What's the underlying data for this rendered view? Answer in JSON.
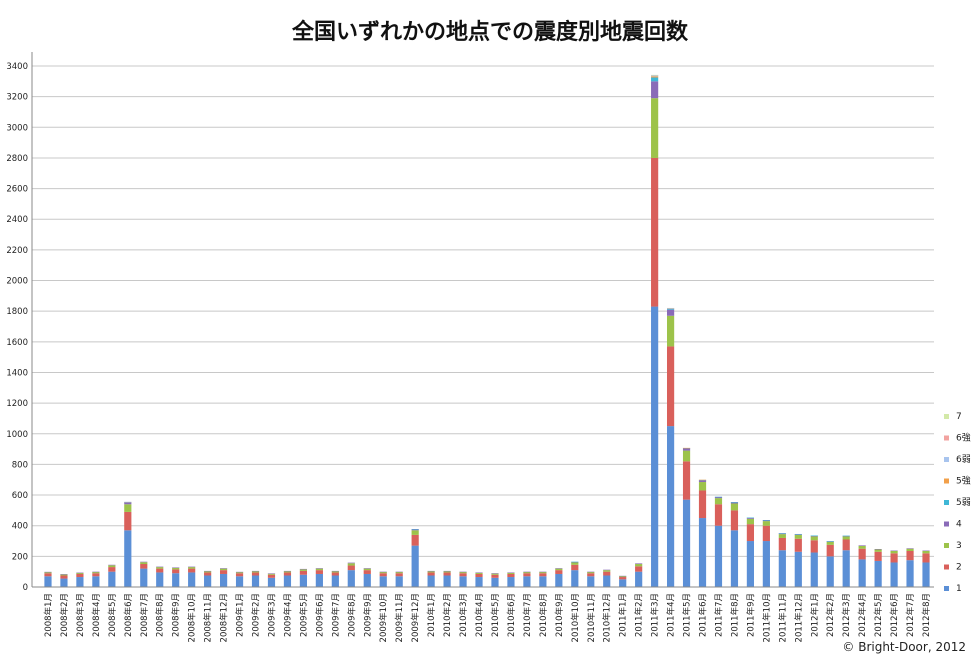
{
  "chart_data": {
    "type": "bar",
    "stacked": true,
    "title": "全国いずれかの地点での震度別地震回数",
    "xlabel": "",
    "ylabel": "",
    "ylim": [
      0,
      3400
    ],
    "yticks": [
      0,
      200,
      400,
      600,
      800,
      1000,
      1200,
      1400,
      1600,
      1800,
      2000,
      2200,
      2400,
      2600,
      2800,
      3000,
      3200,
      3400
    ],
    "grid": true,
    "legend_position": "right",
    "categories": [
      "2008年1月",
      "2008年2月",
      "2008年3月",
      "2008年4月",
      "2008年5月",
      "2008年6月",
      "2008年7月",
      "2008年8月",
      "2008年9月",
      "2008年10月",
      "2008年11月",
      "2008年12月",
      "2009年1月",
      "2009年2月",
      "2009年3月",
      "2009年4月",
      "2009年5月",
      "2009年6月",
      "2009年7月",
      "2009年8月",
      "2009年9月",
      "2009年10月",
      "2009年11月",
      "2009年12月",
      "2010年1月",
      "2010年2月",
      "2010年3月",
      "2010年4月",
      "2010年5月",
      "2010年6月",
      "2010年7月",
      "2010年8月",
      "2010年9月",
      "2010年10月",
      "2010年11月",
      "2010年12月",
      "2011年1月",
      "2011年2月",
      "2011年3月",
      "2011年4月",
      "2011年5月",
      "2011年6月",
      "2011年7月",
      "2011年8月",
      "2011年9月",
      "2011年10月",
      "2011年11月",
      "2011年12月",
      "2012年1月",
      "2012年2月",
      "2012年3月",
      "2012年4月",
      "2012年5月",
      "2012年6月",
      "2012年7月",
      "2012年8月"
    ],
    "series": [
      {
        "name": "1",
        "color": "#5b8fd6",
        "values": [
          70,
          55,
          65,
          70,
          100,
          370,
          120,
          95,
          90,
          95,
          75,
          85,
          70,
          75,
          60,
          75,
          80,
          85,
          75,
          110,
          85,
          70,
          70,
          270,
          75,
          75,
          70,
          65,
          60,
          65,
          70,
          70,
          85,
          110,
          70,
          75,
          50,
          100,
          1830,
          1050,
          570,
          450,
          400,
          370,
          300,
          300,
          240,
          230,
          225,
          200,
          240,
          180,
          170,
          160,
          175,
          160
        ]
      },
      {
        "name": "2",
        "color": "#d9605b",
        "values": [
          20,
          20,
          20,
          20,
          30,
          120,
          30,
          25,
          25,
          25,
          20,
          25,
          20,
          20,
          20,
          20,
          25,
          25,
          20,
          30,
          25,
          20,
          20,
          70,
          20,
          20,
          20,
          20,
          20,
          20,
          20,
          20,
          25,
          35,
          20,
          25,
          15,
          35,
          970,
          520,
          250,
          180,
          140,
          130,
          110,
          100,
          80,
          85,
          80,
          75,
          70,
          70,
          60,
          60,
          60,
          60
        ]
      },
      {
        "name": "3",
        "color": "#9dc34a",
        "values": [
          7,
          7,
          7,
          8,
          12,
          50,
          12,
          10,
          10,
          10,
          8,
          10,
          7,
          8,
          7,
          8,
          10,
          10,
          8,
          15,
          10,
          8,
          8,
          30,
          8,
          8,
          8,
          8,
          8,
          8,
          8,
          8,
          10,
          15,
          8,
          10,
          6,
          15,
          390,
          200,
          70,
          55,
          40,
          45,
          35,
          30,
          25,
          25,
          25,
          20,
          20,
          18,
          15,
          15,
          15,
          15
        ]
      },
      {
        "name": "4",
        "color": "#8a6bb8",
        "values": [
          2,
          2,
          2,
          2,
          3,
          12,
          3,
          3,
          3,
          3,
          2,
          3,
          2,
          2,
          2,
          2,
          3,
          3,
          2,
          4,
          3,
          2,
          2,
          7,
          2,
          2,
          2,
          2,
          2,
          2,
          2,
          2,
          3,
          4,
          2,
          3,
          2,
          4,
          110,
          40,
          15,
          12,
          8,
          8,
          7,
          6,
          5,
          5,
          5,
          4,
          4,
          4,
          3,
          3,
          3,
          3
        ]
      },
      {
        "name": "5弱",
        "color": "#3fb7d6",
        "values": [
          0,
          0,
          0,
          0,
          0,
          2,
          0,
          0,
          0,
          0,
          0,
          0,
          0,
          0,
          0,
          0,
          0,
          0,
          0,
          0,
          0,
          0,
          0,
          1,
          0,
          0,
          0,
          0,
          0,
          0,
          0,
          0,
          0,
          1,
          0,
          0,
          0,
          0,
          25,
          6,
          2,
          2,
          1,
          1,
          1,
          1,
          1,
          1,
          1,
          1,
          1,
          0,
          0,
          0,
          0,
          0
        ]
      },
      {
        "name": "5強",
        "color": "#f2a04a",
        "values": [
          0,
          0,
          0,
          0,
          0,
          1,
          0,
          0,
          0,
          0,
          0,
          0,
          0,
          0,
          0,
          0,
          0,
          0,
          0,
          0,
          0,
          0,
          0,
          0,
          0,
          0,
          0,
          0,
          0,
          0,
          0,
          0,
          0,
          0,
          0,
          0,
          0,
          0,
          8,
          3,
          1,
          1,
          0,
          0,
          0,
          0,
          0,
          0,
          0,
          0,
          0,
          0,
          0,
          0,
          0,
          0
        ]
      },
      {
        "name": "6弱",
        "color": "#a8c4ee",
        "values": [
          0,
          0,
          0,
          0,
          0,
          1,
          0,
          0,
          0,
          0,
          0,
          0,
          0,
          0,
          0,
          0,
          0,
          0,
          0,
          0,
          0,
          0,
          0,
          0,
          0,
          0,
          0,
          0,
          0,
          0,
          0,
          0,
          0,
          0,
          0,
          0,
          0,
          0,
          6,
          2,
          0,
          0,
          0,
          0,
          0,
          0,
          0,
          0,
          0,
          0,
          0,
          0,
          0,
          0,
          0,
          0
        ]
      },
      {
        "name": "6強",
        "color": "#f2a3a0",
        "values": [
          0,
          0,
          0,
          0,
          0,
          0,
          0,
          0,
          0,
          0,
          0,
          0,
          0,
          0,
          0,
          0,
          0,
          0,
          0,
          0,
          0,
          0,
          0,
          0,
          0,
          0,
          0,
          0,
          0,
          0,
          0,
          0,
          0,
          0,
          0,
          0,
          0,
          0,
          2,
          0,
          0,
          0,
          0,
          0,
          0,
          0,
          0,
          0,
          0,
          0,
          0,
          0,
          0,
          0,
          0,
          0
        ]
      },
      {
        "name": "7",
        "color": "#d3e9a8",
        "values": [
          0,
          0,
          0,
          0,
          0,
          0,
          0,
          0,
          0,
          0,
          0,
          0,
          0,
          0,
          0,
          0,
          0,
          0,
          0,
          0,
          0,
          0,
          0,
          0,
          0,
          0,
          0,
          0,
          0,
          0,
          0,
          0,
          0,
          0,
          0,
          0,
          0,
          0,
          1,
          0,
          0,
          0,
          0,
          0,
          0,
          0,
          0,
          0,
          0,
          0,
          0,
          0,
          0,
          0,
          0,
          0
        ]
      }
    ]
  },
  "credit": "© Bright-Door, 2012"
}
